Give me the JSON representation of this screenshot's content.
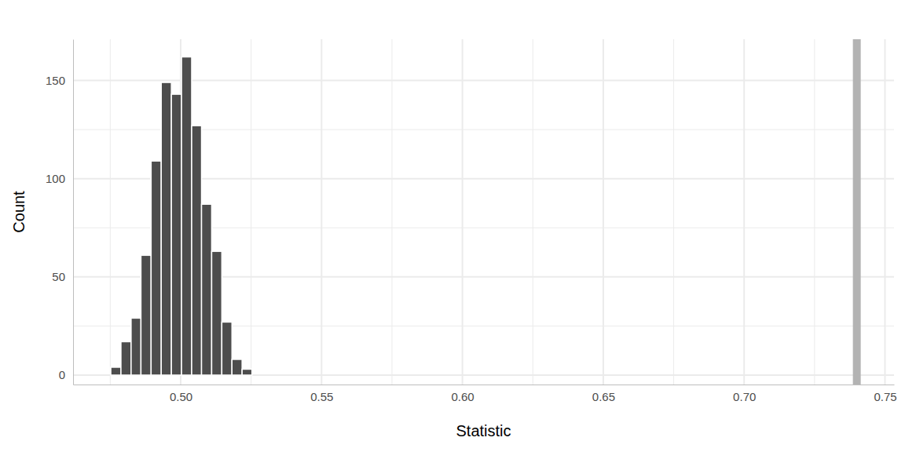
{
  "chart_data": {
    "type": "histogram",
    "x_label": "Statistic",
    "y_label": "Count",
    "bins": [
      0.4752,
      0.4788,
      0.4824,
      0.4859,
      0.4895,
      0.4931,
      0.4967,
      0.5003,
      0.5039,
      0.5074,
      0.511,
      0.5146,
      0.5182,
      0.5218,
      0.5253
    ],
    "values": [
      4,
      17,
      29,
      61,
      109,
      149,
      143,
      162,
      127,
      87,
      63,
      27,
      8,
      3
    ],
    "color": "#4d4d4d",
    "vlines": [
      {
        "value": 0.74,
        "color": "#b3b3b3"
      }
    ],
    "xlim": [
      0.4618,
      0.7532
    ],
    "ylim": [
      -4.8,
      171
    ],
    "xticks": [
      {
        "value": 0.5,
        "label": "0.50"
      },
      {
        "value": 0.55,
        "label": "0.55"
      },
      {
        "value": 0.6,
        "label": "0.60"
      },
      {
        "value": 0.65,
        "label": "0.65"
      },
      {
        "value": 0.7,
        "label": "0.70"
      },
      {
        "value": 0.75,
        "label": "0.75"
      }
    ],
    "yticks": [
      0,
      50,
      100,
      150
    ],
    "minor_xticks": [
      0.475,
      0.525,
      0.575,
      0.625,
      0.675,
      0.725
    ],
    "minor_yticks": [
      25,
      75,
      125
    ],
    "grid": true
  }
}
